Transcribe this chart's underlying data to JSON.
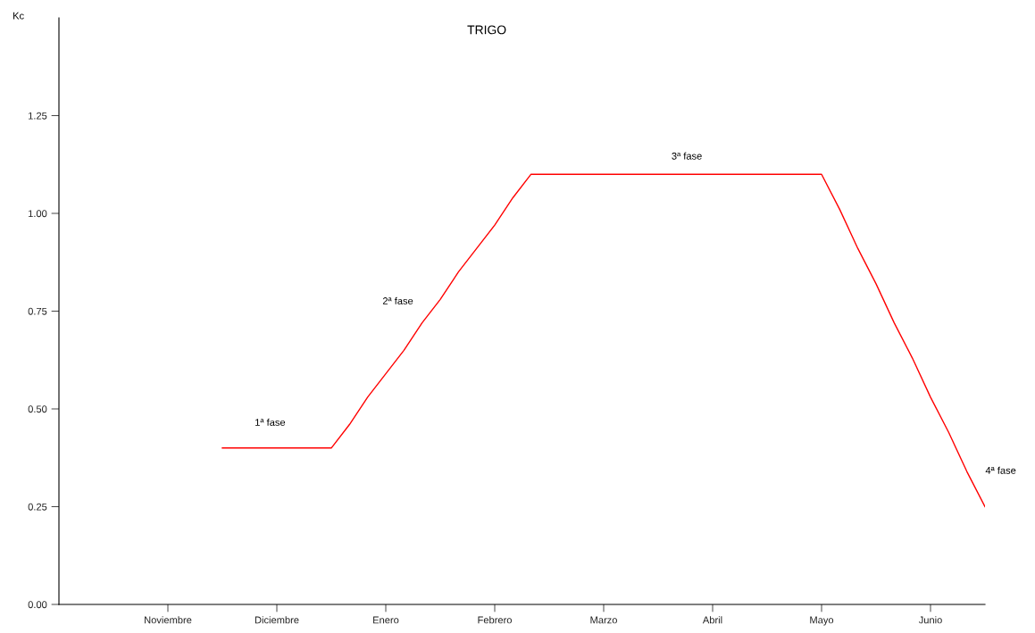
{
  "chart_data": {
    "type": "line",
    "title": "TRIGO",
    "ylabel": "Kc",
    "categories": [
      "Noviembre",
      null,
      null,
      null,
      null,
      null,
      "Diciembre",
      null,
      null,
      null,
      null,
      null,
      "Enero",
      null,
      null,
      null,
      null,
      null,
      "Febrero",
      null,
      null,
      null,
      null,
      null,
      "Marzo",
      null,
      null,
      null,
      null,
      null,
      "Abril",
      null,
      null,
      null,
      null,
      null,
      "Mayo",
      null,
      null,
      null,
      null,
      null,
      "Junio",
      null,
      null,
      null
    ],
    "series": [
      {
        "color": "#ff0000",
        "values": [
          null,
          null,
          null,
          0.4,
          0.4,
          0.4,
          0.4,
          0.4,
          0.4,
          0.4,
          0.46,
          0.53,
          0.59,
          0.65,
          0.72,
          0.78,
          0.85,
          0.91,
          0.97,
          1.04,
          1.1,
          1.1,
          1.1,
          1.1,
          1.1,
          1.1,
          1.1,
          1.1,
          1.1,
          1.1,
          1.1,
          1.1,
          1.1,
          1.1,
          1.1,
          1.1,
          1.1,
          1.01,
          0.91,
          0.82,
          0.72,
          0.63,
          0.53,
          0.44,
          0.34,
          0.25
        ]
      }
    ],
    "ylim": [
      0,
      1.5
    ],
    "yticks": [
      {
        "value": 0,
        "label": "0.00"
      },
      {
        "value": 0.25,
        "label": "0.25"
      },
      {
        "value": 0.5,
        "label": "0.50"
      },
      {
        "value": 0.75,
        "label": "0.75"
      },
      {
        "value": 1.0,
        "label": "1.00"
      },
      {
        "value": 1.25,
        "label": "1.25"
      }
    ],
    "annotations": [
      "1ª fase",
      "2ª fase",
      "3ª fase",
      "4ª fase"
    ],
    "grid": false,
    "legend": false,
    "marker": "none",
    "line_style": "solid"
  }
}
